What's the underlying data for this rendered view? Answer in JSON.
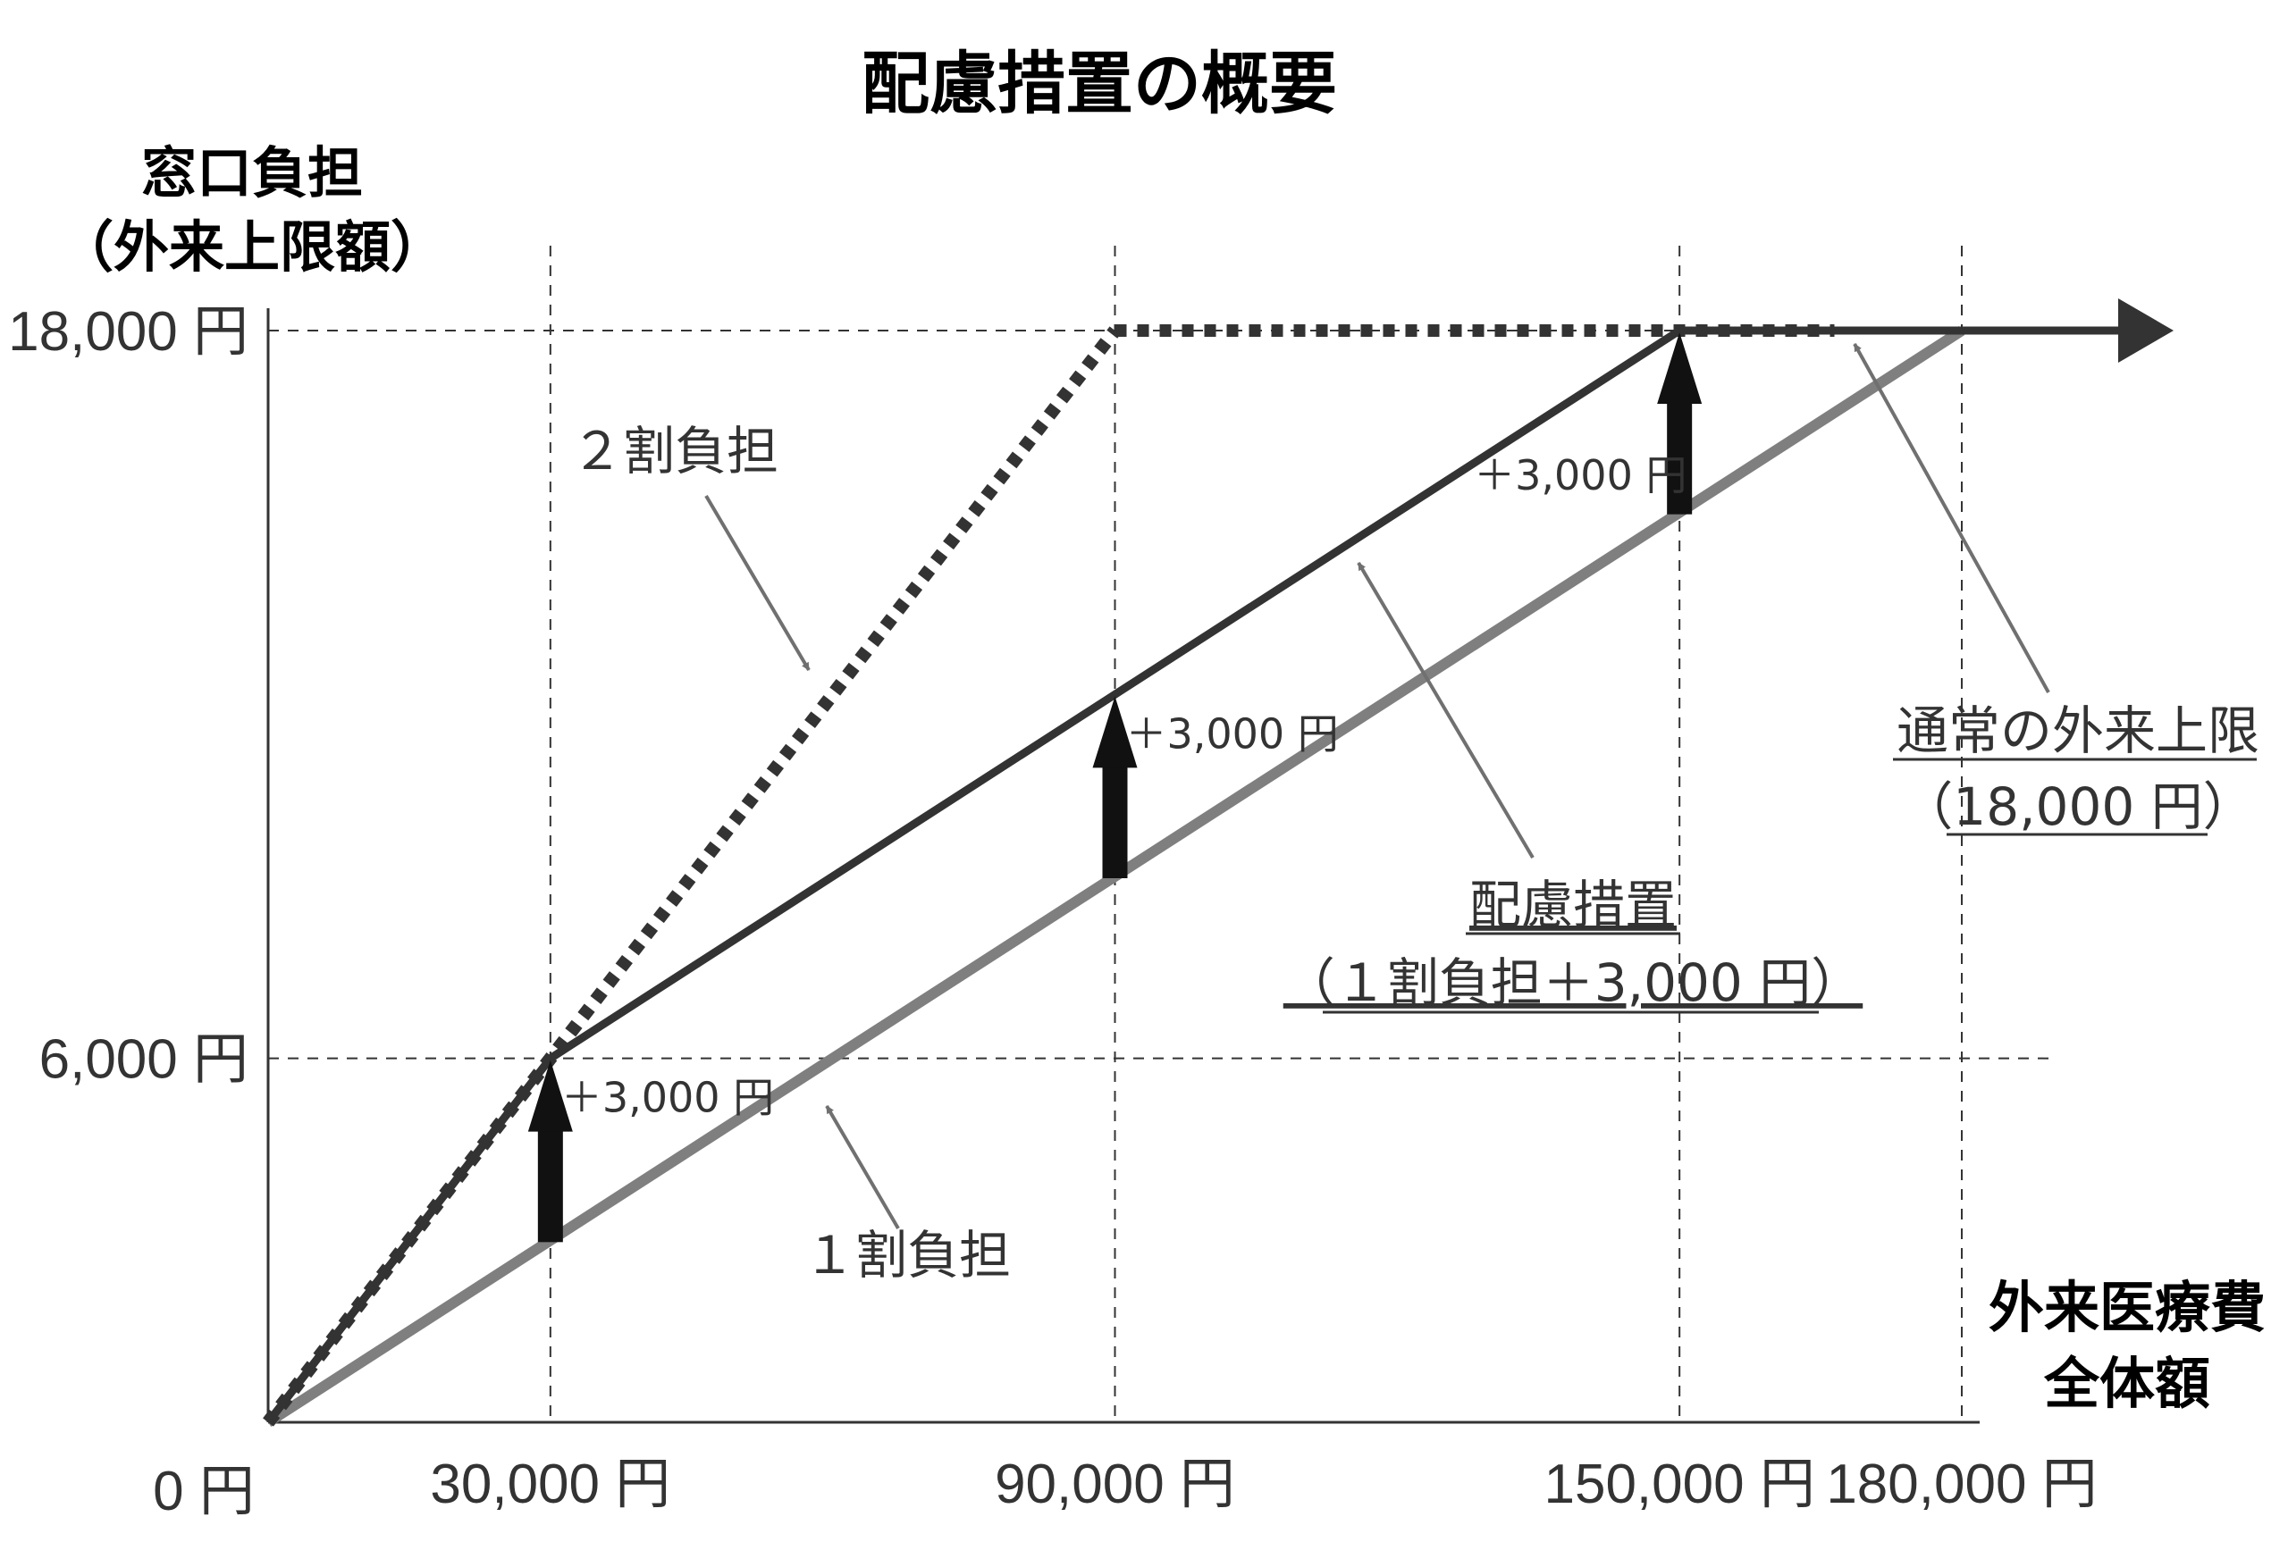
{
  "chart_data": {
    "type": "line",
    "title": "配慮措置の概要",
    "ylabel": [
      "窓口負担",
      "（外来上限額）"
    ],
    "xlabel": [
      "外来医療費",
      "全体額"
    ],
    "x_ticks": [
      {
        "value": 0,
        "label": "0 円"
      },
      {
        "value": 30000,
        "label": "30,000 円"
      },
      {
        "value": 90000,
        "label": "90,000 円"
      },
      {
        "value": 150000,
        "label": "150,000 円"
      },
      {
        "value": 180000,
        "label": "180,000 円"
      }
    ],
    "y_ticks": [
      {
        "value": 6000,
        "label": "6,000 円"
      },
      {
        "value": 18000,
        "label": "18,000 円"
      }
    ],
    "xlim": [
      0,
      180000
    ],
    "ylim": [
      0,
      18000
    ],
    "grid": "dashed at tick values",
    "series": [
      {
        "name": "２割負担",
        "style": "dotted",
        "color": "#333333",
        "points": [
          [
            0,
            0
          ],
          [
            30000,
            6000
          ],
          [
            90000,
            18000
          ],
          [
            180000,
            18000
          ]
        ]
      },
      {
        "name": "配慮措置",
        "label_lines": [
          "配慮措置",
          "（１割負担＋3,000 円）"
        ],
        "style": "solid",
        "color": "#333333",
        "points": [
          [
            0,
            0
          ],
          [
            30000,
            6000
          ],
          [
            150000,
            18000
          ],
          [
            180000,
            18000
          ]
        ]
      },
      {
        "name": "１割負担",
        "style": "solid",
        "color": "#808080",
        "points": [
          [
            0,
            0
          ],
          [
            180000,
            18000
          ]
        ]
      }
    ],
    "cap_label": [
      "通常の外来上限",
      "（18,000 円）"
    ],
    "increment_arrows": [
      {
        "x": 30000,
        "from": 3000,
        "to": 6000,
        "label": "＋3,000 円"
      },
      {
        "x": 90000,
        "from": 9000,
        "to": 12000,
        "label": "＋3,000 円"
      },
      {
        "x": 150000,
        "from": 15000,
        "to": 18000,
        "label": "＋3,000 円"
      }
    ]
  }
}
